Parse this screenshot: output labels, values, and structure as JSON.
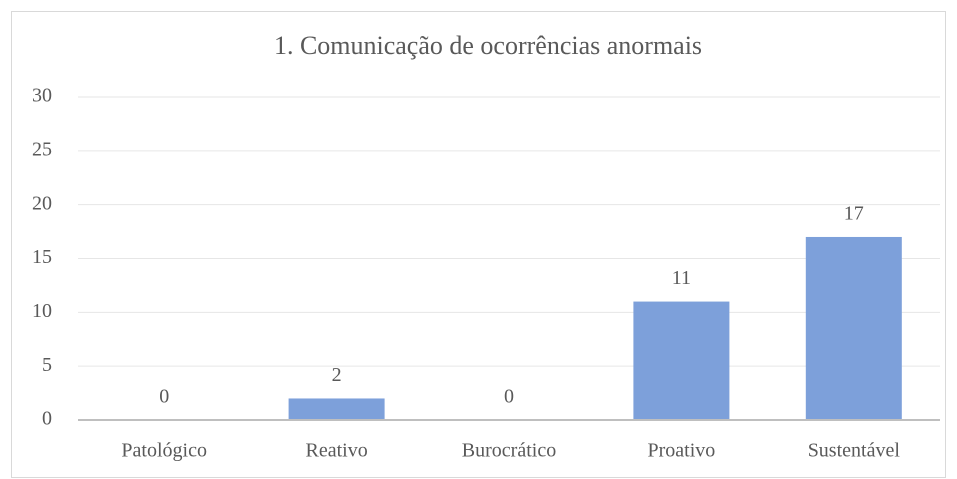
{
  "chart_data": {
    "type": "bar",
    "title": "1. Comunicação de ocorrências anormais",
    "categories": [
      "Patológico",
      "Reativo",
      "Burocrático",
      "Proativo",
      "Sustentável"
    ],
    "values": [
      0,
      2,
      0,
      11,
      17
    ],
    "color": "#7da0da",
    "ylim": [
      0,
      30
    ],
    "yticks": [
      0,
      5,
      10,
      15,
      20,
      25,
      30
    ],
    "grid": true
  }
}
